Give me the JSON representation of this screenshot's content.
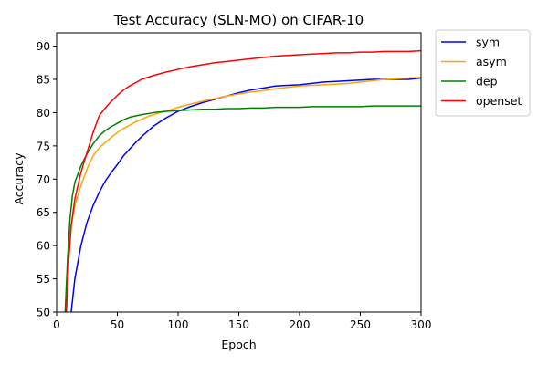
{
  "chart_data": {
    "type": "line",
    "title": "Test Accuracy (SLN-MO) on CIFAR-10",
    "xlabel": "Epoch",
    "ylabel": "Accuracy",
    "xlim": [
      0,
      300
    ],
    "ylim": [
      50,
      92
    ],
    "xticks": [
      0,
      50,
      100,
      150,
      200,
      250,
      300
    ],
    "yticks": [
      50,
      55,
      60,
      65,
      70,
      75,
      80,
      85,
      90
    ],
    "grid": false,
    "legend_position": "outside-top-right",
    "series": [
      {
        "name": "sym",
        "color": "#0000ff",
        "x": [
          1,
          5,
          10,
          12,
          15,
          20,
          25,
          30,
          35,
          40,
          45,
          50,
          55,
          60,
          65,
          70,
          75,
          80,
          85,
          90,
          95,
          100,
          110,
          120,
          130,
          140,
          150,
          160,
          170,
          180,
          190,
          200,
          210,
          220,
          230,
          240,
          250,
          260,
          270,
          280,
          290,
          300
        ],
        "y": [
          null,
          null,
          46,
          50,
          55,
          60,
          63.5,
          66,
          68,
          69.7,
          71,
          72.2,
          73.5,
          74.5,
          75.5,
          76.4,
          77.2,
          78,
          78.6,
          79.2,
          79.7,
          80.2,
          80.9,
          81.5,
          82,
          82.5,
          83,
          83.4,
          83.7,
          84,
          84.1,
          84.2,
          84.4,
          84.6,
          84.7,
          84.8,
          84.9,
          85,
          85,
          85,
          85,
          85.2
        ]
      },
      {
        "name": "asym",
        "color": "#ffa500",
        "x": [
          1,
          5,
          8,
          10,
          12,
          15,
          20,
          25,
          30,
          35,
          40,
          45,
          50,
          55,
          60,
          65,
          70,
          75,
          80,
          85,
          90,
          95,
          100,
          110,
          120,
          130,
          140,
          150,
          160,
          170,
          180,
          190,
          200,
          210,
          220,
          230,
          240,
          250,
          260,
          270,
          280,
          290,
          300
        ],
        "y": [
          null,
          null,
          50,
          58,
          63,
          66,
          69,
          71.5,
          73.5,
          74.7,
          75.5,
          76.3,
          77,
          77.6,
          78.1,
          78.6,
          79,
          79.4,
          79.7,
          80,
          80.2,
          80.5,
          80.8,
          81.3,
          81.7,
          82.1,
          82.5,
          82.8,
          83.1,
          83.3,
          83.6,
          83.8,
          84,
          84.1,
          84.2,
          84.3,
          84.4,
          84.6,
          84.8,
          85,
          85.1,
          85.2,
          85.3
        ]
      },
      {
        "name": "dep",
        "color": "#008000",
        "x": [
          1,
          5,
          7,
          9,
          11,
          13,
          15,
          20,
          25,
          30,
          35,
          40,
          45,
          50,
          55,
          60,
          70,
          80,
          90,
          100,
          110,
          120,
          130,
          140,
          150,
          160,
          170,
          180,
          190,
          200,
          210,
          220,
          230,
          240,
          250,
          260,
          270,
          280,
          290,
          300
        ],
        "y": [
          null,
          null,
          50,
          58,
          64,
          67.5,
          69.5,
          72,
          73.8,
          75.3,
          76.5,
          77.3,
          77.9,
          78.4,
          78.9,
          79.3,
          79.7,
          80,
          80.2,
          80.3,
          80.4,
          80.5,
          80.5,
          80.6,
          80.6,
          80.7,
          80.7,
          80.8,
          80.8,
          80.8,
          80.9,
          80.9,
          80.9,
          80.9,
          80.9,
          81,
          81,
          81,
          81,
          81
        ]
      },
      {
        "name": "openset",
        "color": "#ff0000",
        "x": [
          1,
          5,
          8,
          10,
          12,
          15,
          20,
          25,
          30,
          35,
          40,
          45,
          50,
          55,
          60,
          65,
          70,
          80,
          90,
          100,
          110,
          120,
          130,
          140,
          150,
          160,
          170,
          180,
          190,
          200,
          210,
          220,
          230,
          240,
          250,
          260,
          270,
          280,
          290,
          300
        ],
        "y": [
          null,
          null,
          50,
          58,
          63,
          67,
          71,
          74,
          77,
          79.5,
          80.7,
          81.7,
          82.6,
          83.4,
          84,
          84.5,
          85,
          85.6,
          86.1,
          86.5,
          86.9,
          87.2,
          87.5,
          87.7,
          87.9,
          88.1,
          88.3,
          88.5,
          88.6,
          88.7,
          88.8,
          88.9,
          89,
          89,
          89.1,
          89.1,
          89.2,
          89.2,
          89.2,
          89.3
        ]
      }
    ]
  }
}
